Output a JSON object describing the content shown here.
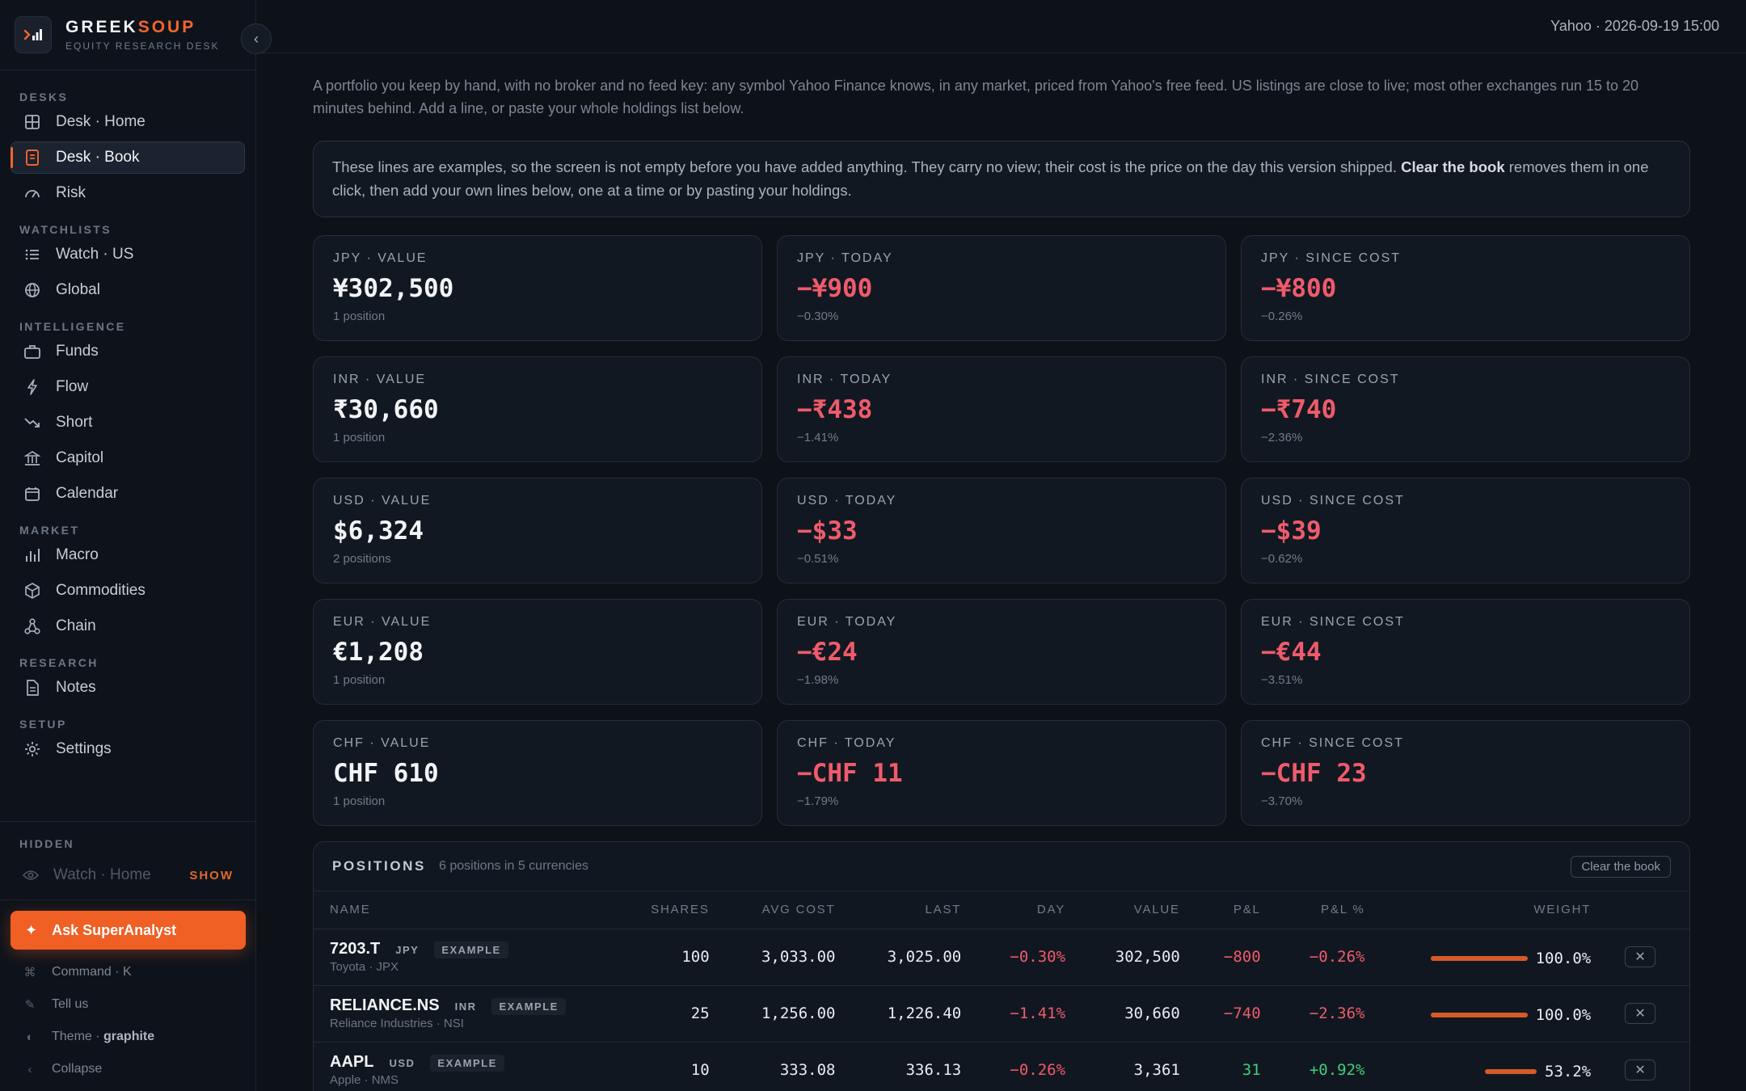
{
  "brand": {
    "name_a": "GREEK",
    "name_b": "SOUP",
    "subtitle": "EQUITY RESEARCH DESK",
    "collapse_glyph": "‹"
  },
  "topbar": {
    "status": "Yahoo · 2026-09-19 15:00"
  },
  "sidebar": {
    "sections": {
      "desks": "DESKS",
      "watchlists": "WATCHLISTS",
      "intelligence": "INTELLIGENCE",
      "market": "MARKET",
      "research": "RESEARCH",
      "setup": "SETUP",
      "hidden": "HIDDEN"
    },
    "items": {
      "desk_home": "Desk · Home",
      "desk_book": "Desk · Book",
      "risk": "Risk",
      "watch_us": "Watch · US",
      "global": "Global",
      "funds": "Funds",
      "flow": "Flow",
      "short": "Short",
      "capitol": "Capitol",
      "calendar": "Calendar",
      "macro": "Macro",
      "commodities": "Commodities",
      "chain": "Chain",
      "notes": "Notes",
      "settings": "Settings"
    },
    "hidden_item": "Watch · Home",
    "show_label": "SHOW",
    "ask_label": "Ask SuperAnalyst",
    "ask_glyph": "✦",
    "command": "Command · K",
    "tell_us": "Tell us",
    "theme_label": "Theme · ",
    "theme_value": "graphite",
    "collapse": "Collapse",
    "accent_color": "#f2662a"
  },
  "main": {
    "intro": "A portfolio you keep by hand, with no broker and no feed key: any symbol Yahoo Finance knows, in any market, priced from Yahoo's free feed. US listings are close to live; most other exchanges run 15 to 20 minutes behind. Add a line, or paste your whole holdings list below.",
    "notice_a": "These lines are examples, so the screen is not empty before you have added anything. They carry no view; their cost is the price on the day this version shipped. ",
    "notice_bold": "Clear the book",
    "notice_b": " removes them in one click, then add your own lines below, one at a time or by pasting your holdings."
  },
  "cards": [
    {
      "label": "JPY · VALUE",
      "value": "¥302,500",
      "sub": "1 position",
      "neg": false
    },
    {
      "label": "JPY · TODAY",
      "value": "−¥900",
      "sub": "−0.30%",
      "neg": true
    },
    {
      "label": "JPY · SINCE COST",
      "value": "−¥800",
      "sub": "−0.26%",
      "neg": true
    },
    {
      "label": "INR · VALUE",
      "value": "₹30,660",
      "sub": "1 position",
      "neg": false
    },
    {
      "label": "INR · TODAY",
      "value": "−₹438",
      "sub": "−1.41%",
      "neg": true
    },
    {
      "label": "INR · SINCE COST",
      "value": "−₹740",
      "sub": "−2.36%",
      "neg": true
    },
    {
      "label": "USD · VALUE",
      "value": "$6,324",
      "sub": "2 positions",
      "neg": false
    },
    {
      "label": "USD · TODAY",
      "value": "−$33",
      "sub": "−0.51%",
      "neg": true
    },
    {
      "label": "USD · SINCE COST",
      "value": "−$39",
      "sub": "−0.62%",
      "neg": true
    },
    {
      "label": "EUR · VALUE",
      "value": "€1,208",
      "sub": "1 position",
      "neg": false
    },
    {
      "label": "EUR · TODAY",
      "value": "−€24",
      "sub": "−1.98%",
      "neg": true
    },
    {
      "label": "EUR · SINCE COST",
      "value": "−€44",
      "sub": "−3.51%",
      "neg": true
    },
    {
      "label": "CHF · VALUE",
      "value": "CHF 610",
      "sub": "1 position",
      "neg": false
    },
    {
      "label": "CHF · TODAY",
      "value": "−CHF 11",
      "sub": "−1.79%",
      "neg": true
    },
    {
      "label": "CHF · SINCE COST",
      "value": "−CHF 23",
      "sub": "−3.70%",
      "neg": true
    }
  ],
  "positions": {
    "title": "POSITIONS",
    "count": "6 positions in 5 currencies",
    "clear_label": "Clear the book",
    "columns": [
      "NAME",
      "SHARES",
      "AVG COST",
      "LAST",
      "DAY",
      "VALUE",
      "P&L",
      "P&L %",
      "WEIGHT"
    ],
    "rows": [
      {
        "ticker": "7203.T",
        "ccy": "JPY",
        "tag": "EXAMPLE",
        "sub": "Toyota · JPX",
        "shares": "100",
        "avg": "3,033.00",
        "last": "3,025.00",
        "day": "−0.30%",
        "value": "302,500",
        "pl": "−800",
        "plpct": "−0.26%",
        "weight": "100.0%",
        "weight_frac": 1.0,
        "pl_pos": false,
        "day_pos": false
      },
      {
        "ticker": "RELIANCE.NS",
        "ccy": "INR",
        "tag": "EXAMPLE",
        "sub": "Reliance Industries · NSI",
        "shares": "25",
        "avg": "1,256.00",
        "last": "1,226.40",
        "day": "−1.41%",
        "value": "30,660",
        "pl": "−740",
        "plpct": "−2.36%",
        "weight": "100.0%",
        "weight_frac": 1.0,
        "pl_pos": false,
        "day_pos": false
      },
      {
        "ticker": "AAPL",
        "ccy": "USD",
        "tag": "EXAMPLE",
        "sub": "Apple · NMS",
        "shares": "10",
        "avg": "333.08",
        "last": "336.13",
        "day": "−0.26%",
        "value": "3,361",
        "pl": "31",
        "plpct": "+0.92%",
        "weight": "53.2%",
        "weight_frac": 0.532,
        "pl_pos": true,
        "day_pos": false
      }
    ],
    "remove_glyph": "✕"
  }
}
